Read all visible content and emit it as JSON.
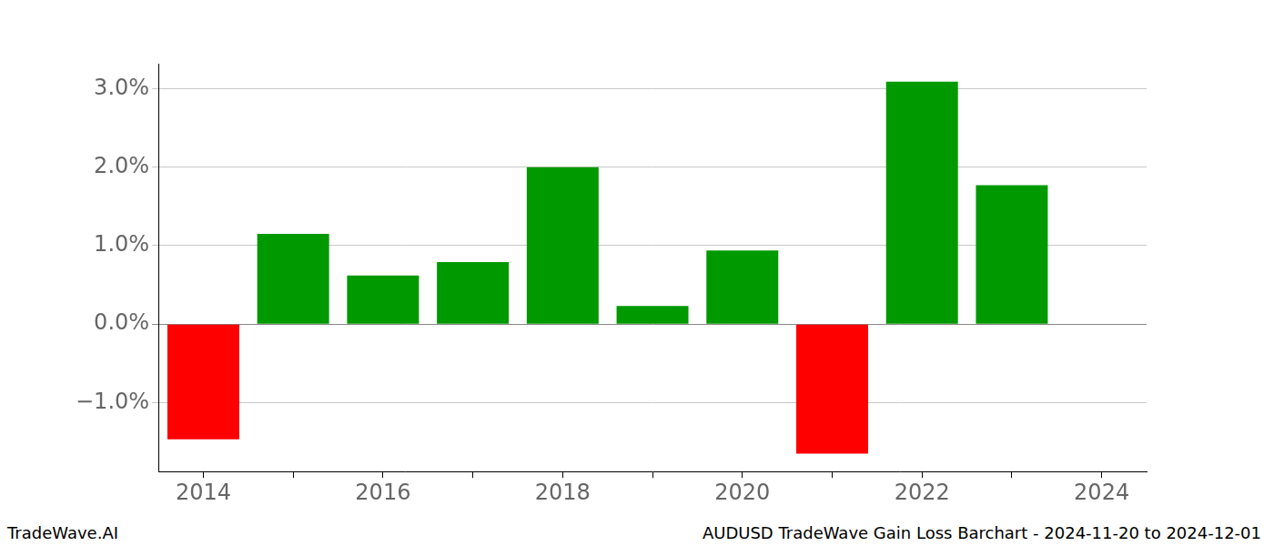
{
  "chart_data": {
    "type": "bar",
    "title": "AUDUSD TradeWave Gain Loss Barchart - 2024-11-20 to 2024-12-01",
    "annotations": [
      "TradeWave.AI"
    ],
    "categories": [
      "2014",
      null,
      "2016",
      null,
      "2018",
      null,
      "2020",
      null,
      "2022",
      null,
      "2024"
    ],
    "values": [
      -1.47,
      1.15,
      0.62,
      0.79,
      2.0,
      0.23,
      0.94,
      -1.65,
      3.09,
      1.77,
      null
    ],
    "colors": [
      "#ff0000",
      "#009900",
      "#009900",
      "#009900",
      "#009900",
      "#009900",
      "#009900",
      "#ff0000",
      "#009900",
      "#009900",
      null
    ],
    "ylim": [
      -1.88,
      3.32
    ],
    "yticks": [
      {
        "value": -1,
        "label": "−1.0%"
      },
      {
        "value": 0,
        "label": "0.0%"
      },
      {
        "value": 1,
        "label": "1.0%"
      },
      {
        "value": 2,
        "label": "2.0%"
      },
      {
        "value": 3,
        "label": "3.0%"
      }
    ],
    "grid": true
  }
}
